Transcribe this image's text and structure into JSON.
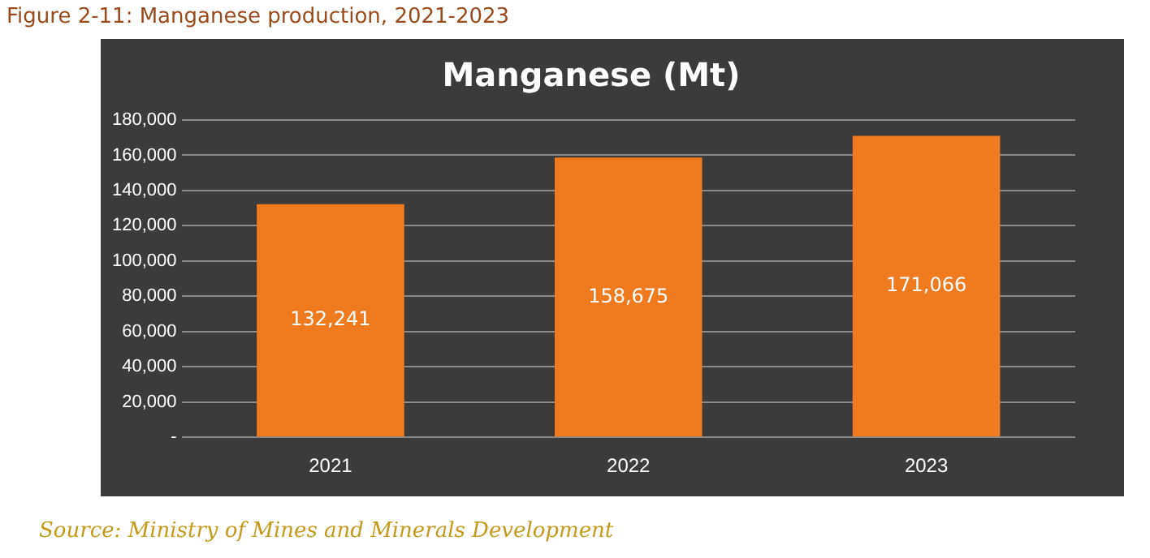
{
  "chart_data": {
    "type": "bar",
    "title": "Manganese (Mt)",
    "categories": [
      "2021",
      "2022",
      "2023"
    ],
    "values": [
      132241,
      158675,
      171066
    ],
    "color": "#f07a1e",
    "ylim": [
      0,
      180000
    ],
    "yticks": [
      {
        "value": 0,
        "label": "-"
      },
      {
        "value": 20000,
        "label": "20,000"
      },
      {
        "value": 40000,
        "label": "40,000"
      },
      {
        "value": 60000,
        "label": "60,000"
      },
      {
        "value": 80000,
        "label": "80,000"
      },
      {
        "value": 100000,
        "label": "100,000"
      },
      {
        "value": 120000,
        "label": "120,000"
      },
      {
        "value": 140000,
        "label": "140,000"
      },
      {
        "value": 160000,
        "label": "160,000"
      },
      {
        "value": 180000,
        "label": "180,000"
      }
    ],
    "value_labels": [
      "132,241",
      "158,675",
      "171,066"
    ],
    "grid": "y",
    "legend": false,
    "annotations": [
      "Figure 2-11: Manganese production, 2021-2023",
      "Source: Ministry of Mines and Minerals Development"
    ]
  }
}
